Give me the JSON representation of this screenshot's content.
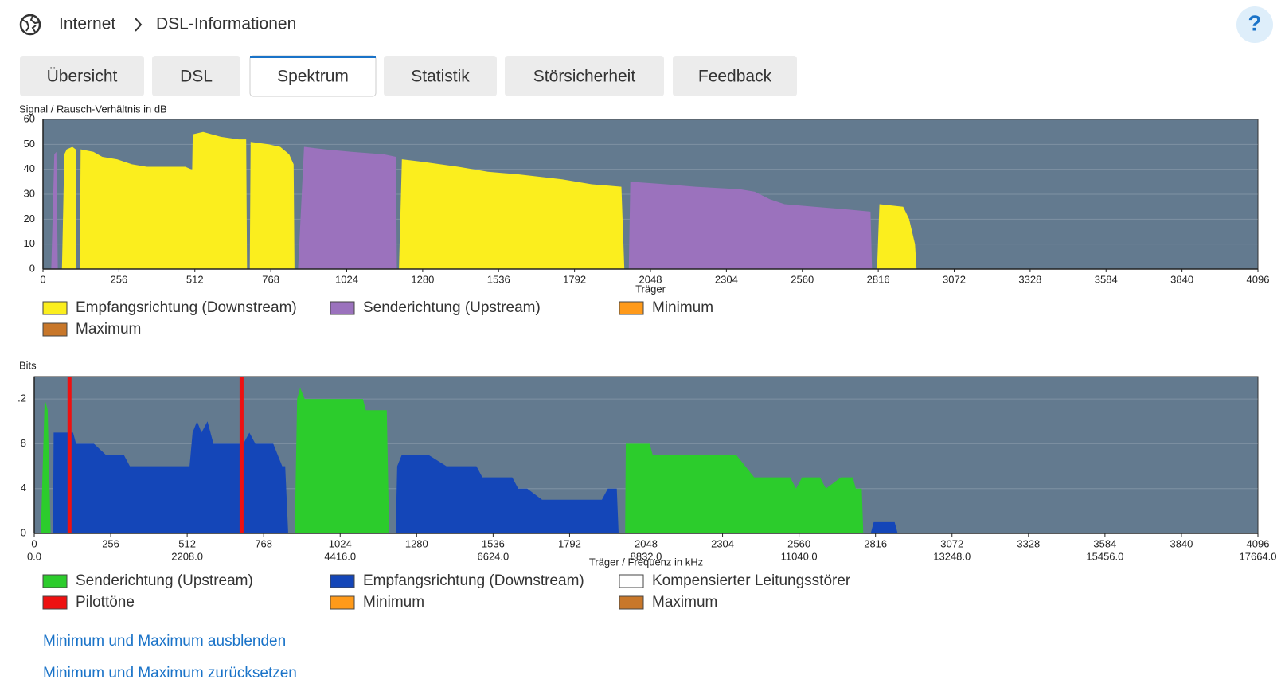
{
  "header": {
    "breadcrumb": [
      "Internet",
      "DSL-Informationen"
    ],
    "help": "?"
  },
  "tabs": [
    "Übersicht",
    "DSL",
    "Spektrum",
    "Statistik",
    "Störsicherheit",
    "Feedback"
  ],
  "active_tab": 2,
  "chart_data": [
    {
      "type": "area",
      "ylabel": "Signal / Rausch-Verhältnis in dB",
      "xlabel": "Träger",
      "xlim": [
        0,
        4096
      ],
      "xticks": [
        0,
        256,
        512,
        768,
        1024,
        1280,
        1536,
        1792,
        2048,
        2304,
        2560,
        2816,
        3072,
        3328,
        3584,
        3840,
        4096
      ],
      "ylim": [
        0,
        60
      ],
      "yticks": [
        0,
        10,
        20,
        30,
        40,
        50,
        60
      ],
      "grid": true,
      "series": [
        {
          "name": "Empfangsrichtung (Downstream)",
          "color": "#fbee1e",
          "x": [
            64,
            72,
            80,
            99,
            110,
            112,
            null,
            124,
            127,
            170,
            200,
            250,
            300,
            350,
            400,
            480,
            500,
            503,
            505,
            540,
            600,
            660,
            685,
            688,
            null,
            697,
            700,
            760,
            800,
            830,
            845,
            848,
            null,
            1200,
            1210,
            1280,
            1400,
            1500,
            1600,
            1750,
            1850,
            1950,
            1960,
            null,
            2812,
            2820,
            2900,
            2920,
            2940,
            2945
          ],
          "values": [
            0,
            46,
            48,
            49,
            48,
            0,
            null,
            0,
            48,
            47,
            45,
            44,
            42,
            41,
            41,
            41,
            40,
            40,
            54,
            55,
            53,
            52,
            52,
            0,
            null,
            0,
            51,
            50,
            49,
            46,
            42,
            0,
            null,
            0,
            44,
            43,
            41,
            39,
            38,
            36,
            34,
            33,
            0,
            null,
            0,
            26,
            25,
            20,
            10,
            0
          ]
        },
        {
          "name": "Senderichtung (Upstream)",
          "color": "#9b72bd",
          "x": [
            28,
            38,
            45,
            50,
            null,
            860,
            880,
            950,
            1040,
            1150,
            1190,
            1193,
            null,
            1975,
            1980,
            2100,
            2200,
            2350,
            2400,
            2450,
            2500,
            2600,
            2700,
            2790,
            2795
          ],
          "values": [
            0,
            46,
            47,
            0,
            null,
            0,
            49,
            48,
            47,
            46,
            45,
            0,
            null,
            0,
            35,
            34,
            33,
            32,
            31,
            28,
            26,
            25,
            24,
            23,
            0
          ]
        },
        {
          "name": "Minimum",
          "color": "#ff9a1a"
        },
        {
          "name": "Maximum",
          "color": "#c8772a"
        }
      ]
    },
    {
      "type": "area",
      "ylabel": "Bits",
      "xlabel": "Träger / Frequenz in kHz",
      "xlim": [
        0,
        4096
      ],
      "xticks": [
        0,
        256,
        512,
        768,
        1024,
        1280,
        1536,
        1792,
        2048,
        2304,
        2560,
        2816,
        3072,
        3328,
        3584,
        3840,
        4096
      ],
      "xticks2": [
        {
          "value": 0,
          "label": "0.0"
        },
        {
          "value": 512,
          "label": "2208.0"
        },
        {
          "value": 1024,
          "label": "4416.0"
        },
        {
          "value": 1536,
          "label": "6624.0"
        },
        {
          "value": 2048,
          "label": "8832.0"
        },
        {
          "value": 2560,
          "label": "11040.0"
        },
        {
          "value": 3072,
          "label": "13248.0"
        },
        {
          "value": 3584,
          "label": "15456.0"
        },
        {
          "value": 4096,
          "label": "17664.0"
        }
      ],
      "ylim": [
        0,
        14
      ],
      "yticks": [
        0,
        4,
        8,
        {
          "value": 12,
          "label": ".2"
        }
      ],
      "grid": true,
      "series": [
        {
          "name": "Senderichtung (Upstream)",
          "color": "#2ccc2c",
          "x": [
            22,
            35,
            45,
            55,
            null,
            872,
            880,
            890,
            905,
            1000,
            1100,
            1110,
            1180,
            1188,
            null,
            1978,
            1980,
            2060,
            2070,
            2350,
            2380,
            2410,
            2530,
            2550,
            2570,
            2630,
            2650,
            2700,
            2740,
            2750,
            2770,
            2775
          ],
          "values": [
            0,
            12,
            11,
            0,
            null,
            0,
            12,
            13,
            12,
            12,
            12,
            11,
            11,
            0,
            null,
            0,
            8,
            8,
            7,
            7,
            6,
            5,
            5,
            4,
            5,
            5,
            4,
            5,
            5,
            4,
            4,
            0
          ]
        },
        {
          "name": "Empfangsrichtung (Downstream)",
          "color": "#1446b8",
          "x": [
            63,
            65,
            100,
            130,
            140,
            200,
            240,
            300,
            320,
            450,
            520,
            530,
            545,
            560,
            580,
            600,
            700,
            720,
            740,
            800,
            830,
            840,
            850,
            null,
            1210,
            1215,
            1230,
            1320,
            1380,
            1480,
            1500,
            1600,
            1620,
            1650,
            1700,
            1800,
            1900,
            1920,
            1950,
            1956,
            null,
            2800,
            2810,
            2860,
            2880,
            2890
          ],
          "values": [
            0,
            9,
            9,
            9,
            8,
            8,
            7,
            7,
            6,
            6,
            6,
            9,
            10,
            9,
            10,
            8,
            8,
            9,
            8,
            8,
            6,
            6,
            0,
            null,
            0,
            6,
            7,
            7,
            6,
            6,
            5,
            5,
            4,
            4,
            3,
            3,
            3,
            4,
            4,
            0,
            null,
            0,
            1,
            1,
            1,
            0
          ]
        },
        {
          "name": "Kompensierter Leitungsstörer",
          "color": "#ffffff"
        },
        {
          "name": "Pilottöne",
          "color": "#ee1111",
          "type": "vline",
          "x": [
            118,
            694
          ]
        },
        {
          "name": "Minimum",
          "color": "#ff9a1a"
        },
        {
          "name": "Maximum",
          "color": "#c8772a"
        }
      ]
    }
  ],
  "links": [
    "Minimum und Maximum ausblenden",
    "Minimum und Maximum zurücksetzen"
  ]
}
